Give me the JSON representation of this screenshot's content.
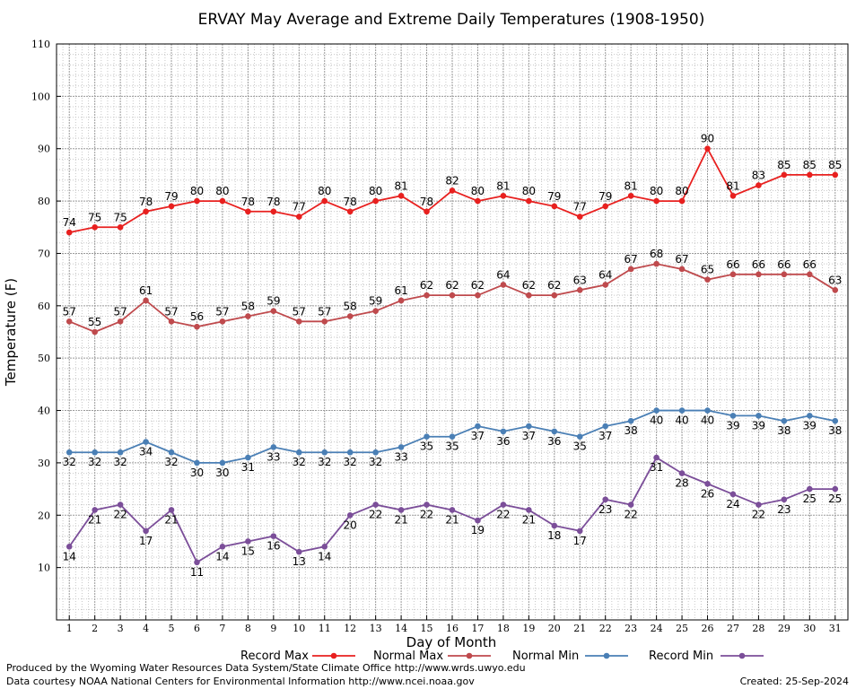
{
  "chart_data": {
    "type": "line",
    "title": "ERVAY May Average and Extreme Daily Temperatures (1908-1950)",
    "xlabel": "Day of Month",
    "ylabel": "Temperature (F)",
    "x": [
      1,
      2,
      3,
      4,
      5,
      6,
      7,
      8,
      9,
      10,
      11,
      12,
      13,
      14,
      15,
      16,
      17,
      18,
      19,
      20,
      21,
      22,
      23,
      24,
      25,
      26,
      27,
      28,
      29,
      30,
      31
    ],
    "xlim": [
      0.5,
      31.5
    ],
    "ylim": [
      0,
      110
    ],
    "yticks": [
      10,
      20,
      30,
      40,
      50,
      60,
      70,
      80,
      90,
      100,
      110
    ],
    "grid": true,
    "legend_position": "bottom",
    "series": [
      {
        "name": "Record Max",
        "color": "#e8201f",
        "label_position": "above",
        "values": [
          74,
          75,
          75,
          78,
          79,
          80,
          80,
          78,
          78,
          77,
          80,
          78,
          80,
          81,
          78,
          82,
          80,
          81,
          80,
          79,
          77,
          79,
          81,
          80,
          80,
          90,
          81,
          83,
          85,
          85,
          85
        ]
      },
      {
        "name": "Normal Max",
        "color": "#bf4a4d",
        "label_position": "above",
        "values": [
          57,
          55,
          57,
          61,
          57,
          56,
          57,
          58,
          59,
          57,
          57,
          58,
          59,
          61,
          62,
          62,
          62,
          64,
          62,
          62,
          63,
          64,
          67,
          68,
          67,
          65,
          66,
          66,
          66,
          66,
          63
        ]
      },
      {
        "name": "Normal Min",
        "color": "#4a7fb5",
        "label_position": "below",
        "values": [
          32,
          32,
          32,
          34,
          32,
          30,
          30,
          31,
          33,
          32,
          32,
          32,
          32,
          33,
          35,
          35,
          37,
          36,
          37,
          36,
          35,
          37,
          38,
          40,
          40,
          40,
          39,
          39,
          38,
          39,
          38
        ]
      },
      {
        "name": "Record Min",
        "color": "#7b4e99",
        "label_position": "below",
        "values": [
          14,
          21,
          22,
          17,
          21,
          11,
          14,
          15,
          16,
          13,
          14,
          20,
          22,
          21,
          22,
          21,
          19,
          22,
          21,
          18,
          17,
          23,
          22,
          31,
          28,
          26,
          24,
          22,
          23,
          25,
          25
        ]
      }
    ]
  },
  "credits": {
    "produced_by": "Produced by the Wyoming Water Resources Data System/State Climate Office http://www.wrds.uwyo.edu",
    "data_courtesy": "Data courtesy NOAA National Centers for Environmental Information http://www.ncei.noaa.gov",
    "created": "Created:  25-Sep-2024"
  }
}
